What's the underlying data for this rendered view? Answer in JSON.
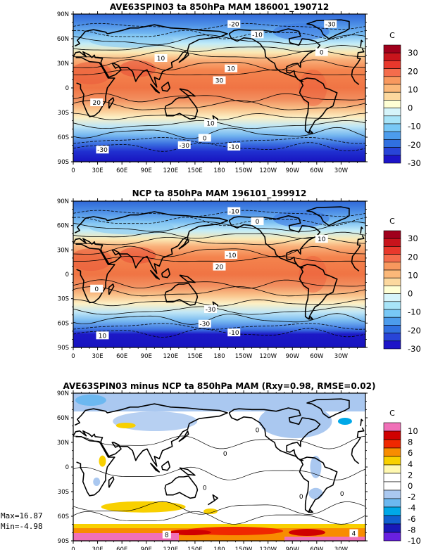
{
  "panels": [
    {
      "title": "AVE63SPIN03 ta 850hPa MAM 186001_190712",
      "colorbar_unit": "C",
      "colorbar_labels": [
        "30",
        "20",
        "10",
        "0",
        "-10",
        "-20",
        "-30"
      ],
      "colorbar_colors": [
        "#a0001c",
        "#c8141c",
        "#e8382c",
        "#f46c4c",
        "#f8985e",
        "#fbb879",
        "#fcd89e",
        "#ffffd4",
        "#d6f4fa",
        "#a8e4f8",
        "#78c8f6",
        "#4c9cec",
        "#3070e0",
        "#2844d8",
        "#1c14c8"
      ],
      "contour_labels": [
        "-20",
        "-10",
        "0",
        "10",
        "30",
        "-30",
        "20",
        "10",
        "0",
        "-10",
        "-30",
        "-30",
        "10"
      ]
    },
    {
      "title": "NCP ta 850hPa MAM 196101_199912",
      "colorbar_unit": "C",
      "colorbar_labels": [
        "30",
        "20",
        "10",
        "0",
        "-10",
        "-20",
        "-30"
      ],
      "colorbar_colors": [
        "#a0001c",
        "#c8141c",
        "#e8382c",
        "#f46c4c",
        "#f8985e",
        "#fbb879",
        "#fcd89e",
        "#ffffd4",
        "#d6f4fa",
        "#a8e4f8",
        "#78c8f6",
        "#4c9cec",
        "#3070e0",
        "#2844d8",
        "#1c14c8"
      ],
      "contour_labels": [
        "-10",
        "0",
        "10",
        "-10",
        "20",
        "10",
        "0",
        "-30",
        "-30",
        "-10"
      ]
    },
    {
      "title": "AVE63SPIN03 minus NCP ta 850hPa MAM (Rxy=0.98, RMSE=0.02)",
      "colorbar_unit": "C",
      "colorbar_labels": [
        "10",
        "8",
        "6",
        "4",
        "2",
        "0",
        "-2",
        "-4",
        "-6",
        "-8",
        "-10"
      ],
      "colorbar_colors": [
        "#f070b8",
        "#d00000",
        "#f02800",
        "#f88c00",
        "#f8d000",
        "#fff8b0",
        "#ffffff",
        "#ffffff",
        "#aac8f0",
        "#6cb8f0",
        "#00a8e8",
        "#1060d0",
        "#1818b8",
        "#6820e0"
      ],
      "contour_labels": [
        "0",
        "0",
        "0",
        "0",
        "0",
        "8",
        "4"
      ],
      "max_label": "Max=16.87",
      "min_label": "Min=-4.98"
    }
  ],
  "axes": {
    "lat_labels": [
      "90N",
      "60N",
      "30N",
      "0",
      "30S",
      "60S",
      "90S"
    ],
    "lon_labels": [
      "0",
      "30E",
      "60E",
      "90E",
      "120E",
      "150E",
      "180",
      "150W",
      "120W",
      "90W",
      "60W",
      "30W"
    ]
  },
  "chart_data": [
    {
      "type": "heatmap",
      "title": "AVE63SPIN03 ta 850hPa MAM 186001_190712",
      "xlabel": "",
      "ylabel": "",
      "x_ticks": [
        "0",
        "30E",
        "60E",
        "90E",
        "120E",
        "150E",
        "180",
        "150W",
        "120W",
        "90W",
        "60W",
        "30W"
      ],
      "y_ticks": [
        "90N",
        "60N",
        "30N",
        "0",
        "30S",
        "60S",
        "90S"
      ],
      "xlim": [
        0,
        360
      ],
      "ylim": [
        -90,
        90
      ],
      "color_levels": [
        -30,
        -25,
        -20,
        -15,
        -10,
        -5,
        0,
        5,
        10,
        15,
        20,
        25,
        30
      ],
      "zonal_profile": {
        "lat": [
          90,
          75,
          60,
          45,
          30,
          15,
          0,
          -15,
          -30,
          -45,
          -60,
          -75,
          -90
        ],
        "value": [
          -22,
          -15,
          -6,
          3,
          12,
          18,
          18,
          15,
          9,
          2,
          -6,
          -20,
          -32
        ]
      }
    },
    {
      "type": "heatmap",
      "title": "NCP ta 850hPa MAM 196101_199912",
      "xlabel": "",
      "ylabel": "",
      "x_ticks": [
        "0",
        "30E",
        "60E",
        "90E",
        "120E",
        "150E",
        "180",
        "150W",
        "120W",
        "90W",
        "60W",
        "30W"
      ],
      "y_ticks": [
        "90N",
        "60N",
        "30N",
        "0",
        "30S",
        "60S",
        "90S"
      ],
      "xlim": [
        0,
        360
      ],
      "ylim": [
        -90,
        90
      ],
      "color_levels": [
        -30,
        -25,
        -20,
        -15,
        -10,
        -5,
        0,
        5,
        10,
        15,
        20,
        25,
        30
      ],
      "zonal_profile": {
        "lat": [
          90,
          75,
          60,
          45,
          30,
          15,
          0,
          -15,
          -30,
          -45,
          -60,
          -75,
          -90
        ],
        "value": [
          -22,
          -15,
          -6,
          3,
          12,
          18,
          18,
          15,
          9,
          2,
          -6,
          -22,
          -34
        ]
      }
    },
    {
      "type": "heatmap",
      "title": "AVE63SPIN03 minus NCP ta 850hPa MAM (Rxy=0.98, RMSE=0.02)",
      "xlabel": "",
      "ylabel": "",
      "x_ticks": [
        "0",
        "30E",
        "60E",
        "90E",
        "120E",
        "150E",
        "180",
        "150W",
        "120W",
        "90W",
        "60W",
        "30W"
      ],
      "y_ticks": [
        "90N",
        "60N",
        "30N",
        "0",
        "30S",
        "60S",
        "90S"
      ],
      "xlim": [
        0,
        360
      ],
      "ylim": [
        -90,
        90
      ],
      "color_levels": [
        -10,
        -8,
        -6,
        -4,
        -2,
        0,
        2,
        4,
        6,
        8,
        10
      ],
      "max": 16.87,
      "min": -4.98
    }
  ]
}
